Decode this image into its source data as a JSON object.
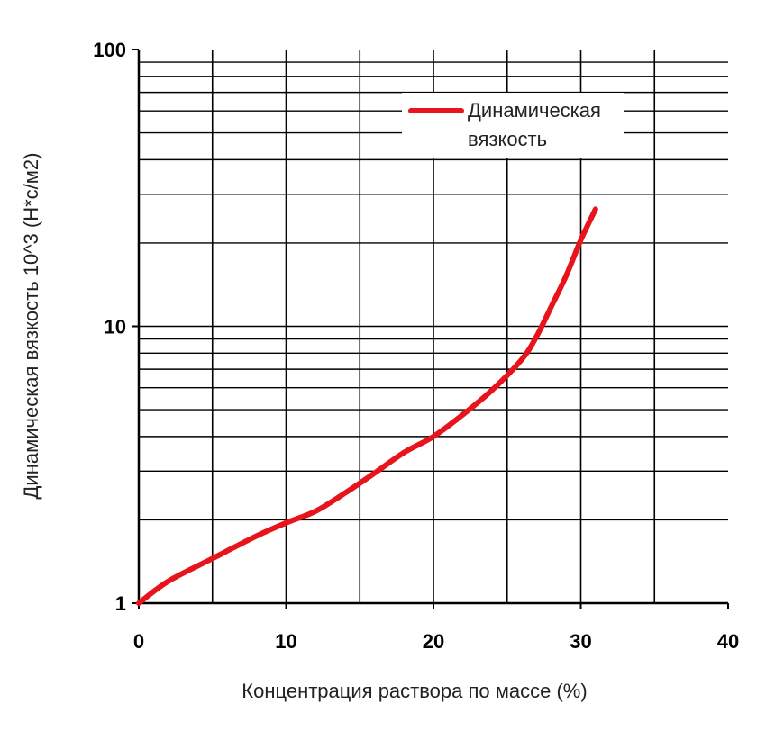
{
  "chart_data": {
    "type": "line",
    "xlabel": "Концентрация раствора по массе (%)",
    "ylabel": "Динамическая вязкость 10^3 (Н*с/м2)",
    "xlim": [
      0,
      40
    ],
    "ylim": [
      1,
      100
    ],
    "yscale": "log",
    "grid": true,
    "legend_position": "top-right",
    "x_ticks": [
      "0",
      "10",
      "20",
      "30",
      "40"
    ],
    "y_ticks": [
      "1",
      "10",
      "100"
    ],
    "series": [
      {
        "name": "Динамическая вязкость",
        "color": "#e8141b",
        "x": [
          0,
          2,
          5,
          8,
          10,
          12,
          14,
          16,
          18,
          20,
          22,
          24,
          26,
          27,
          28,
          29,
          30,
          31
        ],
        "y": [
          1.0,
          1.2,
          1.45,
          1.75,
          1.95,
          2.15,
          2.5,
          2.95,
          3.5,
          4.0,
          4.8,
          5.9,
          7.6,
          9.2,
          11.8,
          15.2,
          20.5,
          26.5
        ]
      }
    ],
    "legend": [
      {
        "line1": "Динамическая",
        "line2": "вязкость"
      }
    ]
  }
}
